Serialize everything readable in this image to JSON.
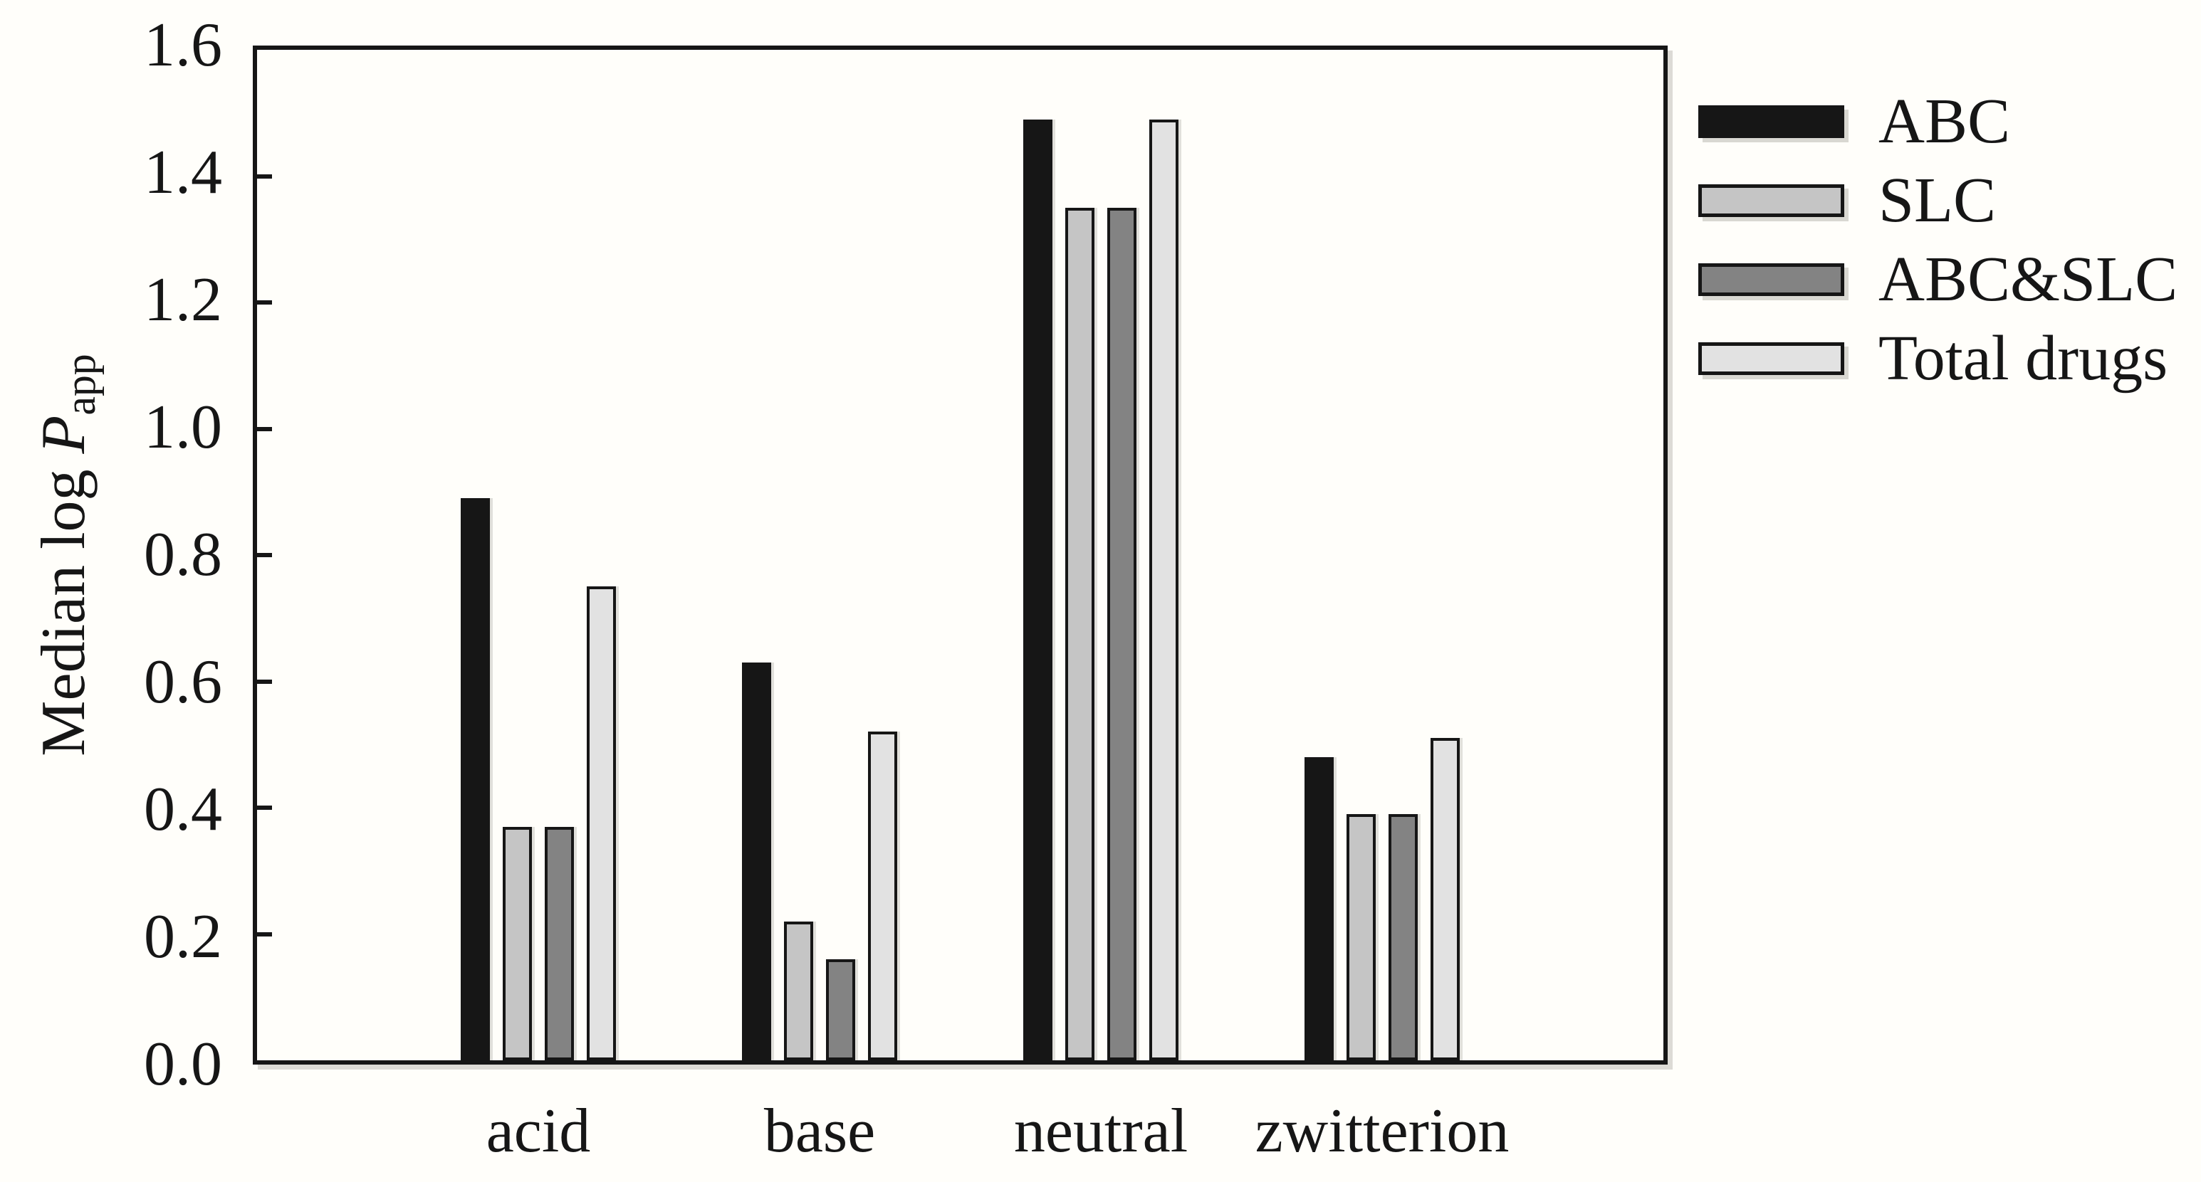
{
  "figure": {
    "background": "#fffefa",
    "ink_color": "#161616",
    "shadow_color": "#b4b2aa"
  },
  "axis": {
    "y_title_prefix": "Median log ",
    "y_title_symbol": "P",
    "y_title_subscript": "app",
    "y_tick_labels": [
      "0.0",
      "0.2",
      "0.4",
      "0.6",
      "0.8",
      "1.0",
      "1.2",
      "1.4",
      "1.6"
    ]
  },
  "chart_data": {
    "type": "bar",
    "title": "",
    "xlabel": "",
    "ylabel": "Median log P_app",
    "categories": [
      "acid",
      "base",
      "neutral",
      "zwitterion"
    ],
    "series": [
      {
        "name": "ABC",
        "color": "#161616",
        "values": [
          0.89,
          0.63,
          1.49,
          0.48
        ]
      },
      {
        "name": "SLC",
        "color": "#c5c5c5",
        "values": [
          0.37,
          0.22,
          1.35,
          0.39
        ]
      },
      {
        "name": "ABC&SLC",
        "color": "#838383",
        "values": [
          0.37,
          0.16,
          1.35,
          0.39
        ]
      },
      {
        "name": "Total drugs",
        "color": "#e2e2e2",
        "values": [
          0.75,
          0.52,
          1.49,
          0.51
        ]
      }
    ],
    "ylim": [
      0,
      1.6
    ],
    "ytick_step": 0.2,
    "grid": false,
    "bar_border_color": "#161616",
    "legend_position": "outside-right"
  },
  "legend": {
    "items": [
      {
        "label": "ABC",
        "fill": "#161616"
      },
      {
        "label": "SLC",
        "fill": "#c5c5c5"
      },
      {
        "label": "ABC&SLC",
        "fill": "#838383"
      },
      {
        "label": "Total drugs",
        "fill": "#e2e2e2"
      }
    ]
  }
}
